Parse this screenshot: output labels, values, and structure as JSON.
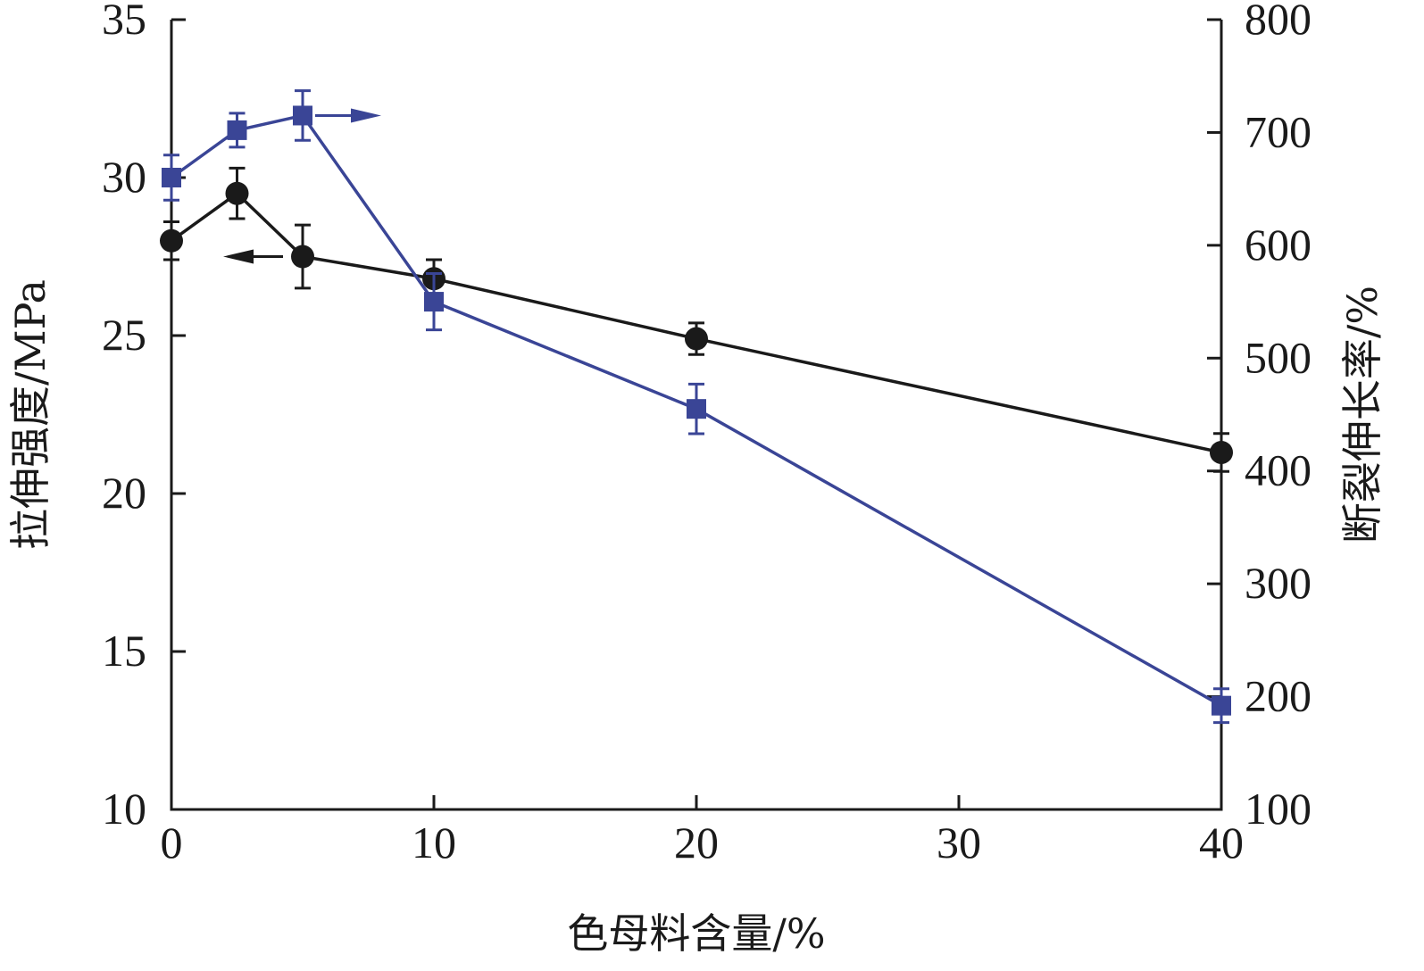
{
  "chart_data": {
    "type": "line",
    "xlabel": "色母料含量/%",
    "ylabel_left": "拉伸强度/MPa",
    "ylabel_right": "断裂伸长率/%",
    "x_ticks": [
      0,
      10,
      20,
      30,
      40
    ],
    "y_left_ticks": [
      10,
      15,
      20,
      25,
      30,
      35
    ],
    "y_right_ticks": [
      100,
      200,
      300,
      400,
      500,
      600,
      700,
      800
    ],
    "xlim": [
      0,
      40
    ],
    "ylim_left": [
      10,
      35
    ],
    "ylim_right": [
      100,
      800
    ],
    "grid": false,
    "series": [
      {
        "axis": "left",
        "color": "#1a1a1a",
        "marker": "circle",
        "x": [
          0,
          2.5,
          5,
          10,
          20,
          40
        ],
        "y": [
          28.0,
          29.5,
          27.5,
          26.8,
          24.9,
          21.3
        ],
        "err": [
          0.6,
          0.8,
          1.0,
          0.6,
          0.5,
          0.6
        ],
        "arrow_direction": "left"
      },
      {
        "axis": "right",
        "color": "#3a4596",
        "marker": "square",
        "x": [
          0,
          2.5,
          5,
          10,
          20,
          40
        ],
        "y": [
          660,
          702,
          715,
          550,
          455,
          192
        ],
        "err": [
          20,
          15,
          22,
          25,
          22,
          15
        ],
        "arrow_direction": "right"
      }
    ]
  }
}
